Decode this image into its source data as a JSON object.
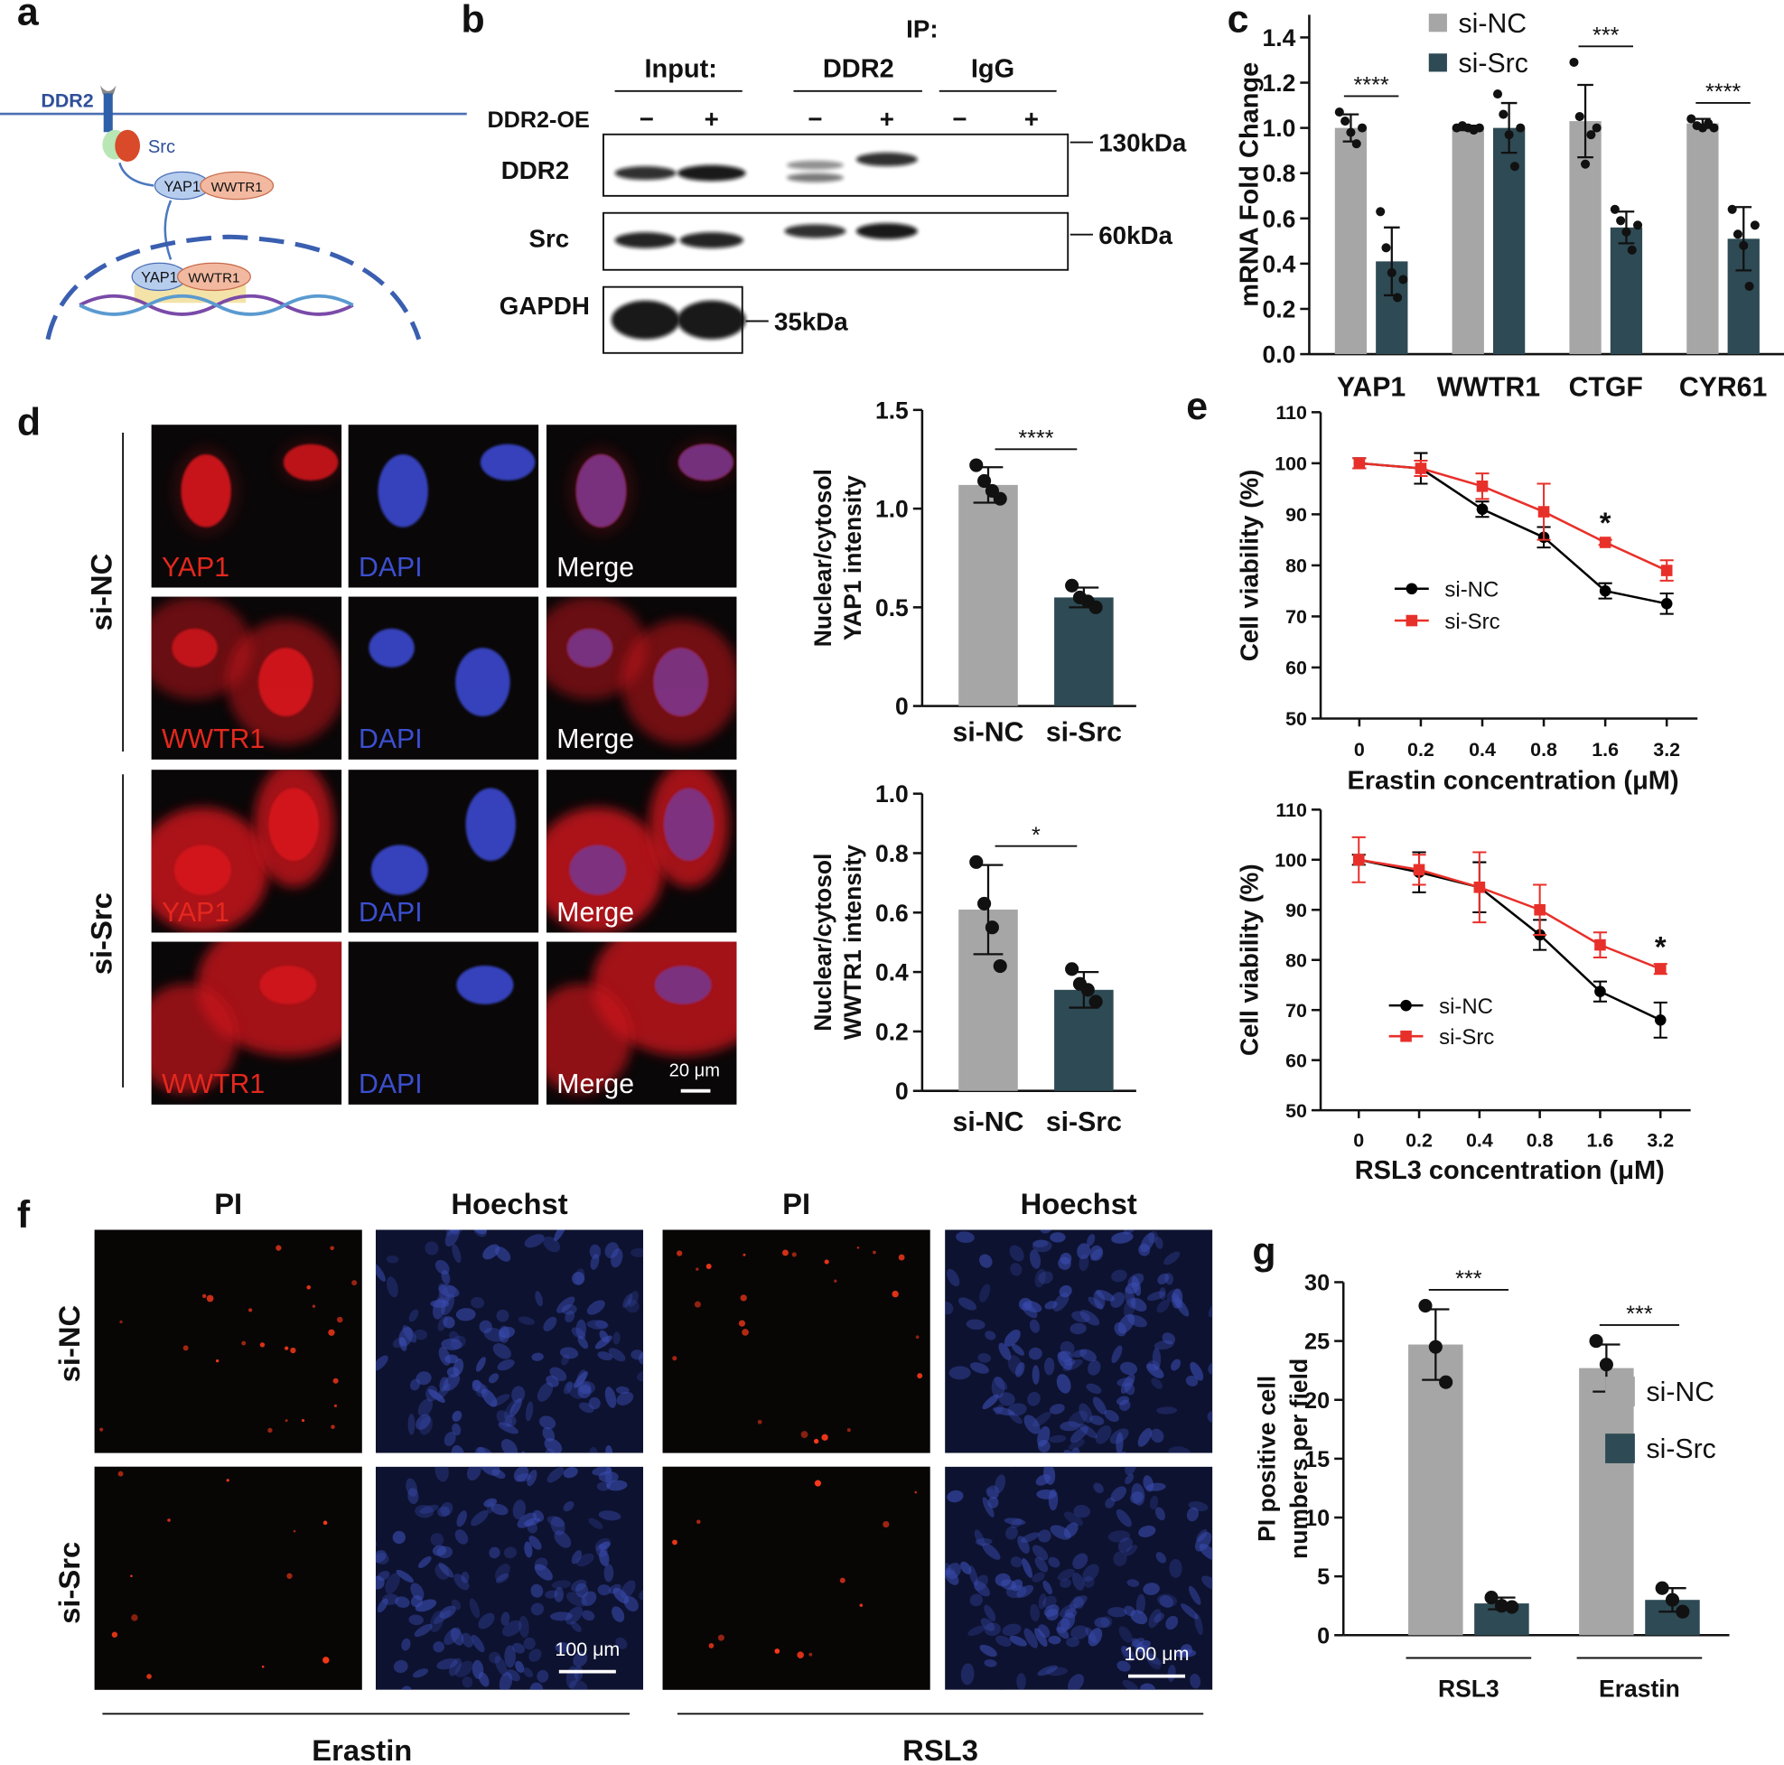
{
  "panel_labels": [
    "a",
    "b",
    "c",
    "d",
    "e",
    "f",
    "g"
  ],
  "schematic": {
    "receptor": "DDR2",
    "kinase": "Src",
    "cytoplasm": [
      "YAP1",
      "WWTR1"
    ],
    "nucleus": [
      "YAP1",
      "WWTR1"
    ]
  },
  "blot": {
    "ip_label": "IP:",
    "groups": [
      "Input:",
      "DDR2",
      "IgG"
    ],
    "condition": "DDR2-OE",
    "lanes": [
      "−",
      "+",
      "−",
      "+",
      "−",
      "+"
    ],
    "rows": [
      {
        "label": "DDR2",
        "size": "130kDa"
      },
      {
        "label": "Src",
        "size": "60kDa"
      },
      {
        "label": "GAPDH",
        "size": "35kDa"
      }
    ]
  },
  "immunofluorescence": {
    "groups": [
      "si-NC",
      "si-Src"
    ],
    "rows": [
      [
        "YAP1",
        "DAPI",
        "Merge"
      ],
      [
        "WWTR1",
        "DAPI",
        "Merge"
      ],
      [
        "YAP1",
        "DAPI",
        "Merge"
      ],
      [
        "WWTR1",
        "DAPI",
        "Merge"
      ]
    ],
    "scale_bar": "20 μm"
  },
  "pi_staining": {
    "columns": [
      "PI",
      "Hoechst",
      "PI",
      "Hoechst"
    ],
    "rows": [
      "si-NC",
      "si-Src"
    ],
    "treatments": [
      "Erastin",
      "RSL3"
    ],
    "scale_bars": [
      "100 μm",
      "100 μm"
    ]
  },
  "chart_data": [
    {
      "type": "bar",
      "categories": [
        "YAP1",
        "WWTR1",
        "CTGF",
        "CYR61"
      ],
      "ylabel": "mRNA Fold Change",
      "ylim": [
        0,
        1.5
      ],
      "yticks": [
        {
          "value": 0,
          "label": "0.0"
        },
        0.2,
        0.4,
        0.6,
        0.8,
        {
          "value": 1,
          "label": "1.0"
        },
        1.2,
        1.4
      ],
      "series": [
        {
          "name": "si-NC",
          "color": "#a6a6a6",
          "values": [
            1.0,
            1.0,
            1.03,
            1.02
          ],
          "errors": [
            0.06,
            0.01,
            0.16,
            0.02
          ],
          "points": [
            [
              1.07,
              1.03,
              0.98,
              0.93,
              1.0
            ],
            [
              1.0,
              1.01,
              1.0,
              0.99,
              1.0
            ],
            [
              1.29,
              1.05,
              0.84,
              0.97,
              1.0
            ],
            [
              1.04,
              1.01,
              1.0,
              1.02,
              1.0
            ]
          ]
        },
        {
          "name": "si-Src",
          "color": "#2e4a54",
          "values": [
            0.41,
            1.0,
            0.56,
            0.51
          ],
          "errors": [
            0.15,
            0.11,
            0.07,
            0.14
          ],
          "points": [
            [
              0.63,
              0.47,
              0.36,
              0.25,
              0.33
            ],
            [
              1.15,
              1.06,
              0.97,
              0.83,
              1.0
            ],
            [
              0.64,
              0.59,
              0.54,
              0.46,
              0.57
            ],
            [
              0.64,
              0.53,
              0.48,
              0.3,
              0.57
            ]
          ]
        }
      ],
      "annotations": [
        {
          "text": "****",
          "category": "YAP1"
        },
        {
          "text": "***",
          "category": "CTGF"
        },
        {
          "text": "****",
          "category": "CYR61"
        }
      ]
    },
    {
      "type": "bar",
      "categories": [
        "si-NC",
        "si-Src"
      ],
      "colors": [
        "#a6a6a6",
        "#2e4a54"
      ],
      "values": [
        1.12,
        0.55
      ],
      "errors": [
        0.09,
        0.05
      ],
      "points": [
        [
          1.22,
          1.14,
          1.09,
          1.05
        ],
        [
          0.61,
          0.55,
          0.53,
          0.5
        ]
      ],
      "ylabel": [
        "Nuclear/cytosol",
        "YAP1 intensity"
      ],
      "ylim": [
        0,
        1.5
      ],
      "yticks": [
        0,
        0.5,
        {
          "value": 1,
          "label": "1.0"
        },
        1.5
      ],
      "annotations": [
        {
          "text": "****"
        }
      ]
    },
    {
      "type": "bar",
      "categories": [
        "si-NC",
        "si-Src"
      ],
      "colors": [
        "#a6a6a6",
        "#2e4a54"
      ],
      "values": [
        0.61,
        0.34
      ],
      "errors": [
        0.15,
        0.06
      ],
      "points": [
        [
          0.77,
          0.63,
          0.55,
          0.42
        ],
        [
          0.41,
          0.36,
          0.34,
          0.3
        ]
      ],
      "ylabel": [
        "Nuclear/cytosol",
        "WWTR1 intensity"
      ],
      "ylim": [
        0,
        1.0
      ],
      "yticks": [
        0,
        0.2,
        0.4,
        0.6,
        0.8,
        {
          "value": 1,
          "label": "1.0"
        }
      ],
      "annotations": [
        {
          "text": "*"
        }
      ]
    },
    {
      "type": "line",
      "categories": [
        "0",
        "0.2",
        "0.4",
        "0.8",
        "1.6",
        "3.2"
      ],
      "xlabel": "Erastin concentration (μM)",
      "ylabel": "Cell viability (%)",
      "ylim": [
        50,
        110
      ],
      "yticks": [
        50,
        60,
        70,
        80,
        90,
        100,
        110
      ],
      "series": [
        {
          "name": "si-NC",
          "color": "#000000",
          "marker": "circle",
          "values": [
            100,
            99,
            91,
            85.5,
            75,
            72.5
          ],
          "errors": [
            1,
            3,
            1.5,
            2,
            1.5,
            2
          ]
        },
        {
          "name": "si-Src",
          "color": "#e8302a",
          "marker": "square",
          "values": [
            100,
            99,
            95.5,
            90.5,
            84.5,
            79
          ],
          "errors": [
            1,
            1.5,
            2.5,
            5.5,
            0.5,
            2
          ]
        }
      ],
      "annotations": [
        {
          "text": "*",
          "category": "1.6"
        }
      ]
    },
    {
      "type": "line",
      "categories": [
        "0",
        "0.2",
        "0.4",
        "0.8",
        "1.6",
        "3.2"
      ],
      "xlabel": "RSL3 concentration (μM)",
      "ylabel": "Cell viability (%)",
      "ylim": [
        50,
        110
      ],
      "yticks": [
        50,
        60,
        70,
        80,
        90,
        100,
        110
      ],
      "series": [
        {
          "name": "si-NC",
          "color": "#000000",
          "marker": "circle",
          "values": [
            100,
            97.5,
            94.5,
            85,
            73.7,
            68
          ],
          "errors": [
            1,
            4,
            5,
            3,
            2,
            3.5
          ]
        },
        {
          "name": "si-Src",
          "color": "#e8302a",
          "marker": "square",
          "values": [
            100,
            98,
            94.5,
            90,
            83,
            78.2
          ],
          "errors": [
            4.5,
            3,
            7,
            5,
            2.5,
            1
          ]
        }
      ],
      "annotations": [
        {
          "text": "*",
          "category": "3.2"
        }
      ]
    },
    {
      "type": "bar",
      "categories": [
        "RSL3",
        "Erastin"
      ],
      "ylabel": [
        "PI positive cell",
        "numbers per field"
      ],
      "ylim": [
        0,
        30
      ],
      "yticks": [
        0,
        5,
        10,
        15,
        20,
        25,
        30
      ],
      "series": [
        {
          "name": "si-NC",
          "color": "#a6a6a6",
          "values": [
            24.7,
            22.7
          ],
          "errors": [
            3,
            2
          ],
          "points": [
            [
              28,
              24.5,
              21.5
            ],
            [
              25,
              23,
              21
            ]
          ]
        },
        {
          "name": "si-Src",
          "color": "#2e4a54",
          "values": [
            2.7,
            3.0
          ],
          "errors": [
            0.5,
            1
          ],
          "points": [
            [
              3.2,
              2.5,
              2.4
            ],
            [
              4,
              3,
              2
            ]
          ]
        }
      ],
      "annotations": [
        {
          "text": "***",
          "category": "RSL3"
        },
        {
          "text": "***",
          "category": "Erastin"
        }
      ]
    }
  ]
}
